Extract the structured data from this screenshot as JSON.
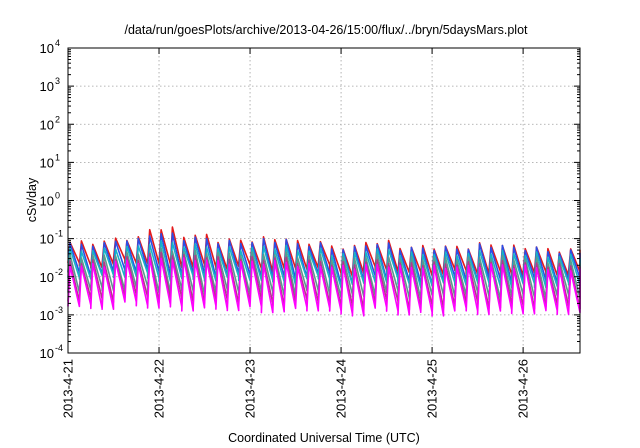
{
  "chart_data": {
    "type": "line",
    "title": "/data/run/goesPlots/archive/2013-04-26/15:00/flux/../bryn/5daysMars.plot",
    "xlabel": "Coordinated Universal Time (UTC)",
    "ylabel": "cSv/day",
    "x_axis": {
      "type": "time",
      "range": [
        "2013-04-21",
        "2013-04-26 15:00"
      ],
      "ticks": [
        "2013-4-21",
        "2013-4-22",
        "2013-4-23",
        "2013-4-24",
        "2013-4-25",
        "2013-4-26"
      ]
    },
    "y_axis": {
      "scale": "log",
      "range": [
        0.0001,
        10000
      ],
      "ticks": [
        {
          "base": "10",
          "exp": "-4"
        },
        {
          "base": "10",
          "exp": "-3"
        },
        {
          "base": "10",
          "exp": "-2"
        },
        {
          "base": "10",
          "exp": "-1"
        },
        {
          "base": "10",
          "exp": "0"
        },
        {
          "base": "10",
          "exp": "1"
        },
        {
          "base": "10",
          "exp": "2"
        },
        {
          "base": "10",
          "exp": "3"
        },
        {
          "base": "10",
          "exp": "4"
        }
      ]
    },
    "grid": true,
    "legend": "none",
    "period_hours": 3,
    "series": [
      {
        "color": "#e41a1c",
        "peak": [
          0.08,
          0.1,
          0.18,
          0.12,
          0.09,
          0.1,
          0.08,
          0.06,
          0.08,
          0.06,
          0.06,
          0.07,
          0.06,
          0.05
        ],
        "trough": [
          0.02,
          0.025,
          0.02,
          0.018,
          0.018,
          0.015,
          0.018,
          0.012,
          0.016,
          0.012,
          0.014,
          0.012,
          0.012,
          0.012
        ]
      },
      {
        "color": "#2b4ee6",
        "peak": [
          0.07,
          0.09,
          0.13,
          0.1,
          0.08,
          0.09,
          0.07,
          0.055,
          0.07,
          0.055,
          0.055,
          0.065,
          0.055,
          0.045
        ],
        "trough": [
          0.012,
          0.015,
          0.012,
          0.011,
          0.011,
          0.009,
          0.011,
          0.007,
          0.01,
          0.007,
          0.009,
          0.008,
          0.008,
          0.008
        ]
      },
      {
        "color": "#17b3c8",
        "peak": [
          0.05,
          0.06,
          0.08,
          0.065,
          0.055,
          0.06,
          0.05,
          0.04,
          0.05,
          0.04,
          0.04,
          0.045,
          0.04,
          0.035
        ],
        "trough": [
          0.01,
          0.011,
          0.009,
          0.009,
          0.009,
          0.007,
          0.009,
          0.006,
          0.008,
          0.006,
          0.007,
          0.006,
          0.006,
          0.006
        ]
      },
      {
        "color": "#5a9b8e",
        "peak": [
          0.035,
          0.04,
          0.05,
          0.045,
          0.04,
          0.04,
          0.035,
          0.03,
          0.035,
          0.03,
          0.03,
          0.032,
          0.03,
          0.026
        ],
        "trough": [
          0.0045,
          0.005,
          0.0042,
          0.004,
          0.004,
          0.0035,
          0.004,
          0.003,
          0.0038,
          0.003,
          0.0035,
          0.003,
          0.003,
          0.003
        ]
      },
      {
        "color": "#b5368c",
        "peak": [
          0.025,
          0.03,
          0.04,
          0.035,
          0.03,
          0.03,
          0.025,
          0.022,
          0.025,
          0.022,
          0.022,
          0.024,
          0.022,
          0.02
        ],
        "trough": [
          0.0025,
          0.003,
          0.0025,
          0.0023,
          0.0023,
          0.002,
          0.0023,
          0.0016,
          0.0022,
          0.0016,
          0.002,
          0.0017,
          0.0017,
          0.0017
        ]
      },
      {
        "color": "#ff00ff",
        "peak": [
          0.02,
          0.025,
          0.03,
          0.028,
          0.024,
          0.024,
          0.02,
          0.018,
          0.02,
          0.018,
          0.018,
          0.02,
          0.018,
          0.016
        ],
        "trough": [
          0.0016,
          0.002,
          0.0016,
          0.0015,
          0.0015,
          0.0013,
          0.0015,
          0.0011,
          0.0014,
          0.0011,
          0.0013,
          0.0012,
          0.0012,
          0.0012
        ]
      }
    ]
  }
}
